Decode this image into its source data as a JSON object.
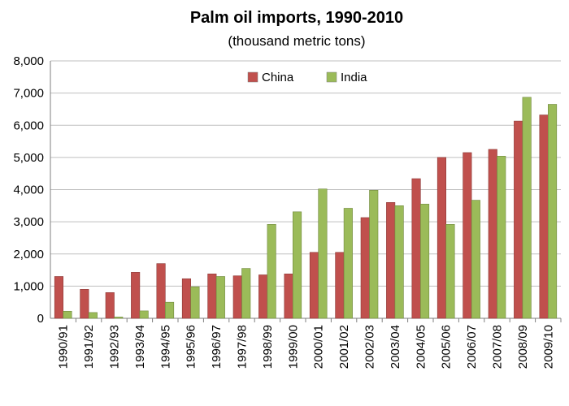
{
  "chart_data": {
    "type": "bar",
    "title": "Palm oil imports, 1990-2010",
    "subtitle": "(thousand metric tons)",
    "xlabel": "",
    "ylabel": "",
    "ylim": [
      0,
      8000
    ],
    "yticks": [
      "0",
      "1,000",
      "2,000",
      "3,000",
      "4,000",
      "5,000",
      "6,000",
      "7,000",
      "8,000"
    ],
    "ytick_values": [
      0,
      1000,
      2000,
      3000,
      4000,
      5000,
      6000,
      7000,
      8000
    ],
    "grid": true,
    "legend_position": "top-center",
    "categories": [
      "1990/91",
      "1991/92",
      "1992/93",
      "1993/94",
      "1994/95",
      "1995/96",
      "1996/97",
      "1997/98",
      "1998/99",
      "1999/00",
      "2000/01",
      "2001/02",
      "2002/03",
      "2003/04",
      "2004/05",
      "2005/06",
      "2006/07",
      "2007/08",
      "2008/09",
      "2009/10"
    ],
    "series": [
      {
        "name": "China",
        "color": "#c0504d",
        "values": [
          1300,
          900,
          800,
          1430,
          1700,
          1230,
          1380,
          1320,
          1350,
          1380,
          2050,
          2050,
          3130,
          3600,
          4340,
          5000,
          5150,
          5250,
          6130,
          6320
        ]
      },
      {
        "name": "India",
        "color": "#9bbb59",
        "values": [
          220,
          180,
          40,
          230,
          500,
          980,
          1300,
          1550,
          2920,
          3310,
          4020,
          3420,
          3980,
          3500,
          3550,
          2920,
          3670,
          5040,
          6870,
          6650
        ]
      }
    ]
  }
}
